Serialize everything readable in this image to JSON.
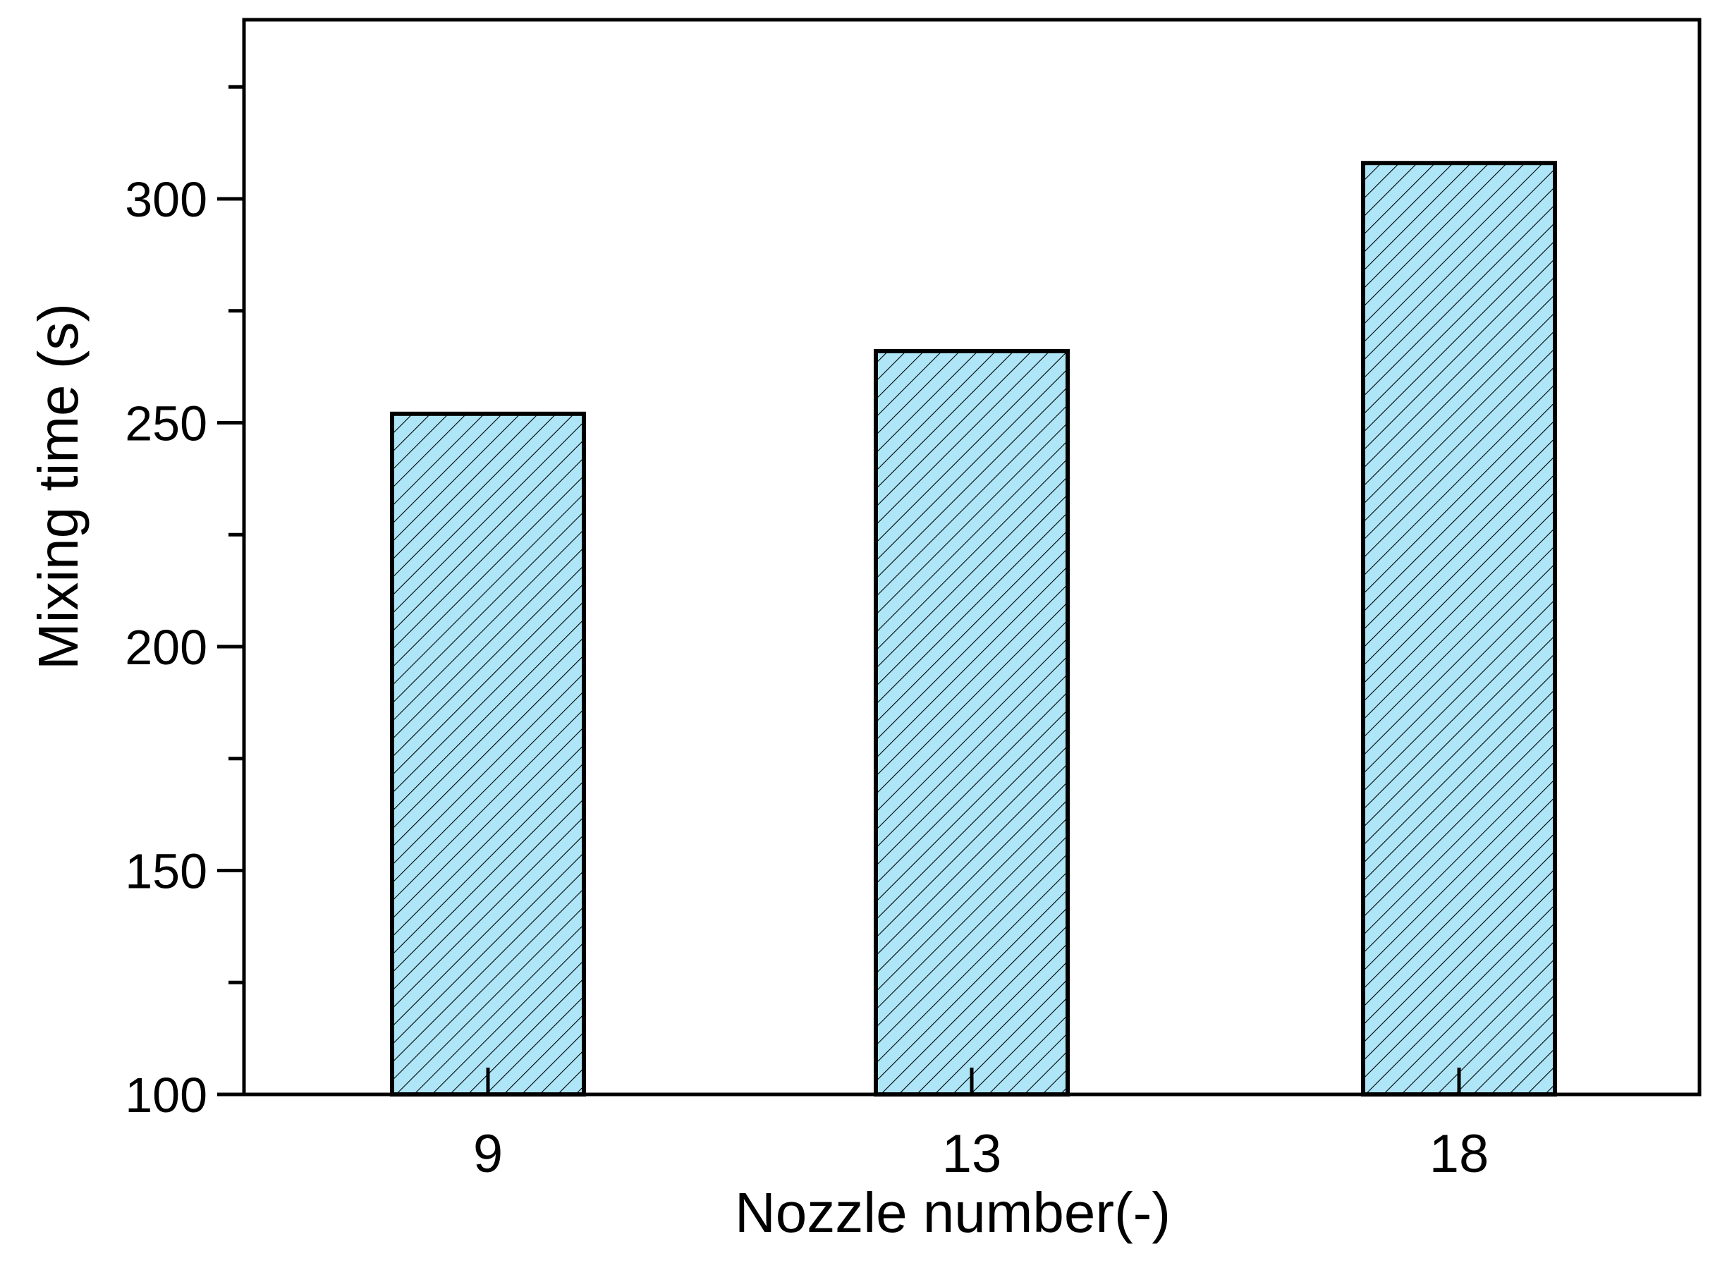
{
  "chart_data": {
    "type": "bar",
    "categories": [
      "9",
      "13",
      "18"
    ],
    "values": [
      252,
      266,
      308
    ],
    "xlabel": "Nozzle number(-)",
    "ylabel": "Mixing time  (s)",
    "ylim": [
      100,
      340
    ],
    "yticks": [
      100,
      150,
      200,
      250,
      300
    ],
    "yticks_minor": [
      125,
      175,
      225,
      275,
      325
    ],
    "grid": false,
    "legend": "none",
    "bar_fill": "#aee6f8",
    "bar_hatch": "#000000",
    "bar_edge": "#000000"
  }
}
